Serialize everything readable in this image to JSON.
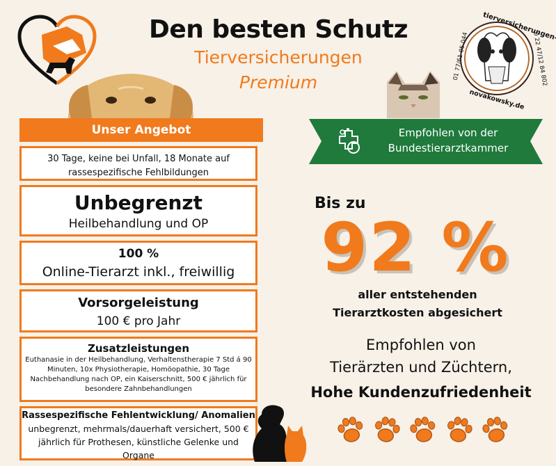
{
  "header": {
    "title": "Den besten Schutz",
    "subtitle": "Tierversicherungen",
    "tagline": "Premium"
  },
  "stamp": {
    "top_text": "tierversicherungen-",
    "left_text": "01 77/61 05 044",
    "right_text": "0 22 47/12 84 802",
    "bottom_text": "novakowsky.de"
  },
  "offer": {
    "heading": "Unser Angebot",
    "box1": {
      "text": "30 Tage, keine bei Unfall, 18 Monate auf rassespezifische Fehlbildungen"
    },
    "box2": {
      "title": "Unbegrenzt",
      "text": "Heilbehandlung und OP"
    },
    "box3": {
      "title": "100 %",
      "text": "Online-Tierarzt inkl., freiwillig"
    },
    "box4": {
      "title": "Vorsorgeleistung",
      "text": "100 € pro Jahr"
    },
    "box5": {
      "title": "Zusatzleistungen",
      "text": "Euthanasie in der Heilbehandlung, Verhaltenstherapie 7 Std á 90 Minuten, 10x Physiotherapie, Homöopathie, 30 Tage Nachbehandlung nach OP, ein Kaiserschnitt, 500 € jährlich für besondere Zahnbehandlungen"
    },
    "box6": {
      "title": "Rassespezifische Fehlentwicklung/ Anomalien",
      "text": "unbegrenzt, mehrmals/dauerhaft versichert, 500 € jährlich für Prothesen, künstliche Gelenke und Organe"
    }
  },
  "recommendation_ribbon": {
    "line1": "Empfohlen von der",
    "line2": "Bundestierarztkammer",
    "icon": "pet-health-cross-icon"
  },
  "coverage": {
    "prefix": "Bis zu",
    "percent": "92 %",
    "line1": "aller entstehenden",
    "line2": "Tierarztkosten abgesichert"
  },
  "endorsement": {
    "line1": "Empfohlen von",
    "line2": "Tierärzten und Züchtern,",
    "line3": "Hohe Kundenzufriedenheit"
  },
  "colors": {
    "accent": "#f07a1c",
    "ribbon_green": "#1f7a3c",
    "background": "#f7f1e8"
  },
  "paw_count": 5
}
